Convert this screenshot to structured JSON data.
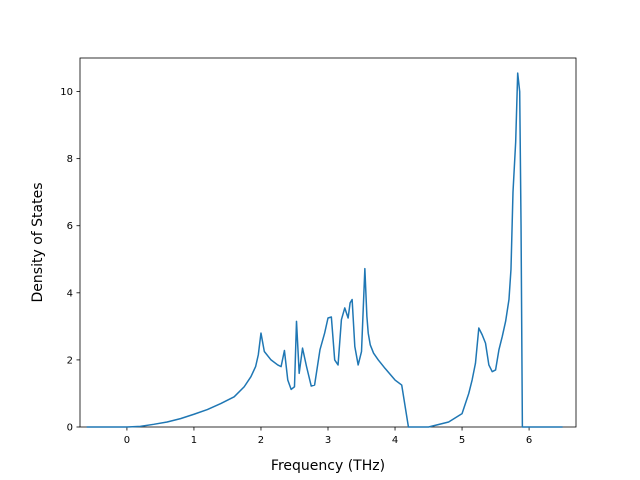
{
  "chart_data": {
    "type": "line",
    "title": "",
    "xlabel": "Frequency (THz)",
    "ylabel": "Density of States",
    "xlim": [
      -0.7,
      6.7
    ],
    "ylim": [
      0,
      11
    ],
    "x_ticks": [
      0,
      1,
      2,
      3,
      4,
      5,
      6
    ],
    "y_ticks": [
      0,
      2,
      4,
      6,
      8,
      10
    ],
    "grid": false,
    "colors": {
      "line": "#1f77b4",
      "axes": "#000000",
      "background": "#ffffff"
    },
    "series": [
      {
        "x": [
          -0.6,
          -0.2,
          0.0,
          0.2,
          0.4,
          0.6,
          0.8,
          1.0,
          1.2,
          1.4,
          1.6,
          1.75,
          1.85,
          1.92,
          1.96,
          2.0,
          2.05,
          2.15,
          2.25,
          2.3,
          2.35,
          2.4,
          2.45,
          2.5,
          2.53,
          2.57,
          2.62,
          2.68,
          2.75,
          2.8,
          2.88,
          2.95,
          3.0,
          3.05,
          3.1,
          3.15,
          3.2,
          3.25,
          3.3,
          3.33,
          3.36,
          3.4,
          3.45,
          3.5,
          3.55,
          3.58,
          3.6,
          3.63,
          3.68,
          3.75,
          3.85,
          4.0,
          4.1,
          4.2,
          4.25,
          4.3,
          4.5,
          4.8,
          5.0,
          5.05,
          5.1,
          5.15,
          5.2,
          5.25,
          5.3,
          5.35,
          5.4,
          5.45,
          5.5,
          5.55,
          5.6,
          5.65,
          5.7,
          5.73,
          5.76,
          5.8,
          5.83,
          5.86,
          5.88,
          5.9,
          5.92,
          5.95,
          6.0,
          6.5
        ],
        "y": [
          0,
          0,
          0,
          0.02,
          0.08,
          0.15,
          0.25,
          0.38,
          0.52,
          0.7,
          0.9,
          1.2,
          1.5,
          1.8,
          2.15,
          2.8,
          2.25,
          2.0,
          1.85,
          1.8,
          2.28,
          1.4,
          1.12,
          1.2,
          3.15,
          1.6,
          2.35,
          1.8,
          1.22,
          1.25,
          2.3,
          2.8,
          3.25,
          3.28,
          2.0,
          1.85,
          3.2,
          3.55,
          3.25,
          3.7,
          3.8,
          2.4,
          1.85,
          2.25,
          4.72,
          3.3,
          2.8,
          2.45,
          2.2,
          2.0,
          1.75,
          1.4,
          1.25,
          0.0,
          0.0,
          0.0,
          0.0,
          0.15,
          0.4,
          0.7,
          1.0,
          1.4,
          1.9,
          2.95,
          2.75,
          2.5,
          1.85,
          1.65,
          1.7,
          2.3,
          2.7,
          3.15,
          3.8,
          4.7,
          7.0,
          8.5,
          10.55,
          10.0,
          6.0,
          0.0,
          0.0,
          0.0,
          0.0,
          0.0
        ]
      }
    ]
  }
}
